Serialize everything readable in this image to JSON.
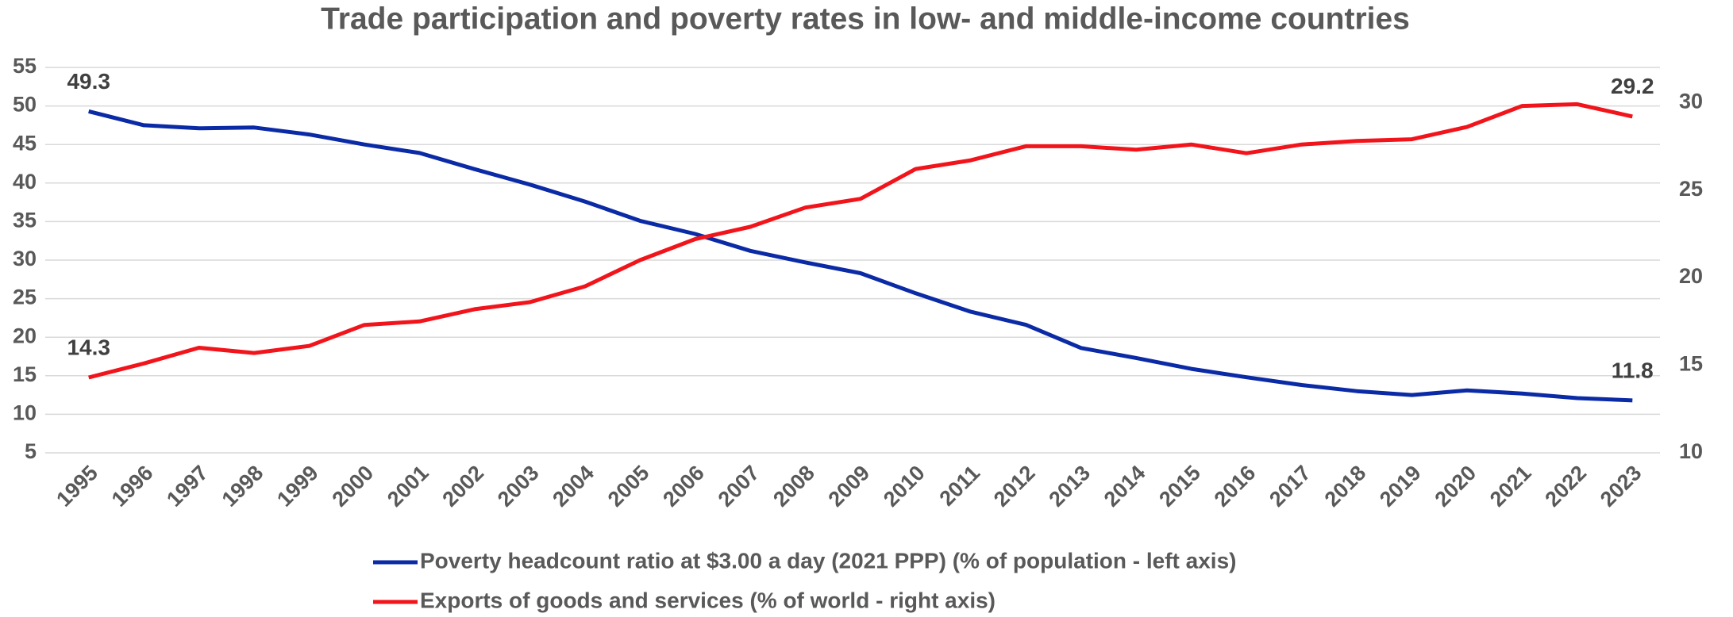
{
  "chart_data": {
    "type": "line",
    "title": "Trade participation and poverty rates in low- and middle-income countries",
    "categories": [
      "1995",
      "1996",
      "1997",
      "1998",
      "1999",
      "2000",
      "2001",
      "2002",
      "2003",
      "2004",
      "2005",
      "2006",
      "2007",
      "2008",
      "2009",
      "2010",
      "2011",
      "2012",
      "2013",
      "2014",
      "2015",
      "2016",
      "2017",
      "2018",
      "2019",
      "2020",
      "2021",
      "2022",
      "2023"
    ],
    "series": [
      {
        "name": "Poverty headcount ratio at $3.00 a day (2021 PPP) (% of population - left axis)",
        "color": "#0b2aa6",
        "values": [
          49.3,
          47.5,
          47.1,
          47.2,
          46.3,
          45.0,
          43.9,
          41.8,
          39.8,
          37.6,
          35.1,
          33.4,
          31.2,
          29.7,
          28.3,
          25.7,
          23.3,
          21.6,
          18.6,
          17.3,
          15.9,
          14.8,
          13.8,
          13.0,
          12.5,
          13.1,
          12.7,
          12.1,
          11.8
        ]
      },
      {
        "name": "Exports of goods and services (% of world - right axis)",
        "color": "#f2141b",
        "axis": "y2",
        "values": [
          14.3,
          15.1,
          16.0,
          15.7,
          16.1,
          17.3,
          17.5,
          18.2,
          18.6,
          19.5,
          21.0,
          22.2,
          22.9,
          24.0,
          24.5,
          26.2,
          26.7,
          27.5,
          27.5,
          27.3,
          27.6,
          27.1,
          27.6,
          27.8,
          27.9,
          28.6,
          29.8,
          29.9,
          29.2
        ]
      }
    ],
    "ylim": [
      5,
      55
    ],
    "yticks": [
      5,
      10,
      15,
      20,
      25,
      30,
      35,
      40,
      45,
      50,
      55
    ],
    "y2lim": [
      10,
      32
    ],
    "y2ticks": [
      10,
      15,
      20,
      25,
      30
    ],
    "grid": true
  }
}
